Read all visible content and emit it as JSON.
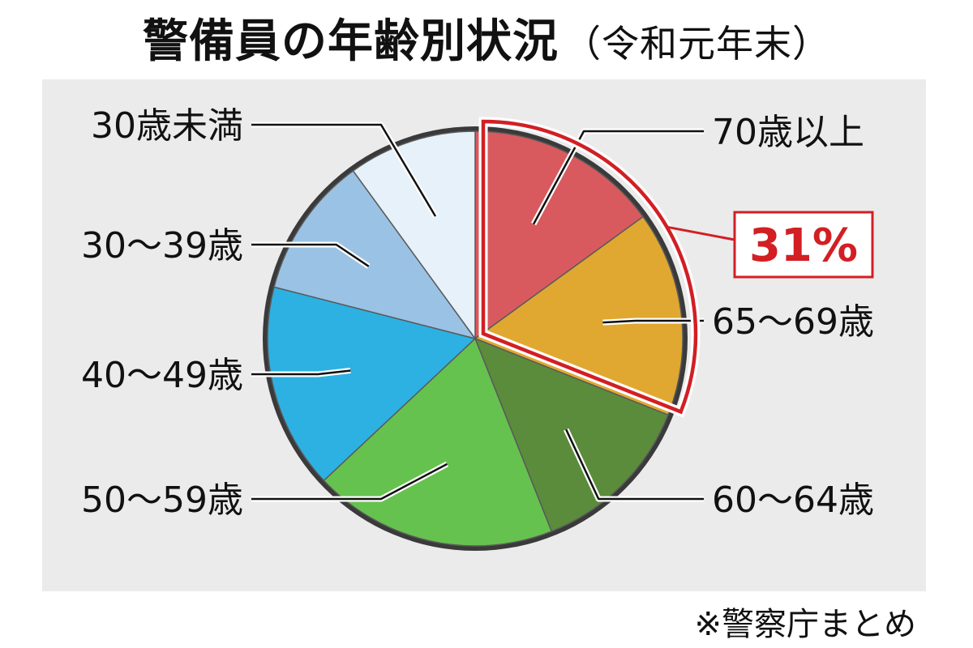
{
  "chart_data": {
    "type": "pie",
    "title": "警備員の年齢別状況",
    "subtitle": "（令和元年末）",
    "slices": [
      {
        "label": "70歳以上",
        "value": 15,
        "color": "#d95a5e"
      },
      {
        "label": "65～69歳",
        "value": 16,
        "color": "#e0a830"
      },
      {
        "label": "60～64歳",
        "value": 13,
        "color": "#5a8c3c"
      },
      {
        "label": "50～59歳",
        "value": 19,
        "color": "#66c24e"
      },
      {
        "label": "40～49歳",
        "value": 16,
        "color": "#2db1e2"
      },
      {
        "label": "30～39歳",
        "value": 11,
        "color": "#9ac2e4"
      },
      {
        "label": "30歳未満",
        "value": 10,
        "color": "#e6f1f9"
      }
    ],
    "highlight": {
      "label": "31%",
      "slices": [
        "70歳以上",
        "65～69歳"
      ],
      "color": "#d21f24"
    },
    "source": "※警察庁まとめ"
  }
}
